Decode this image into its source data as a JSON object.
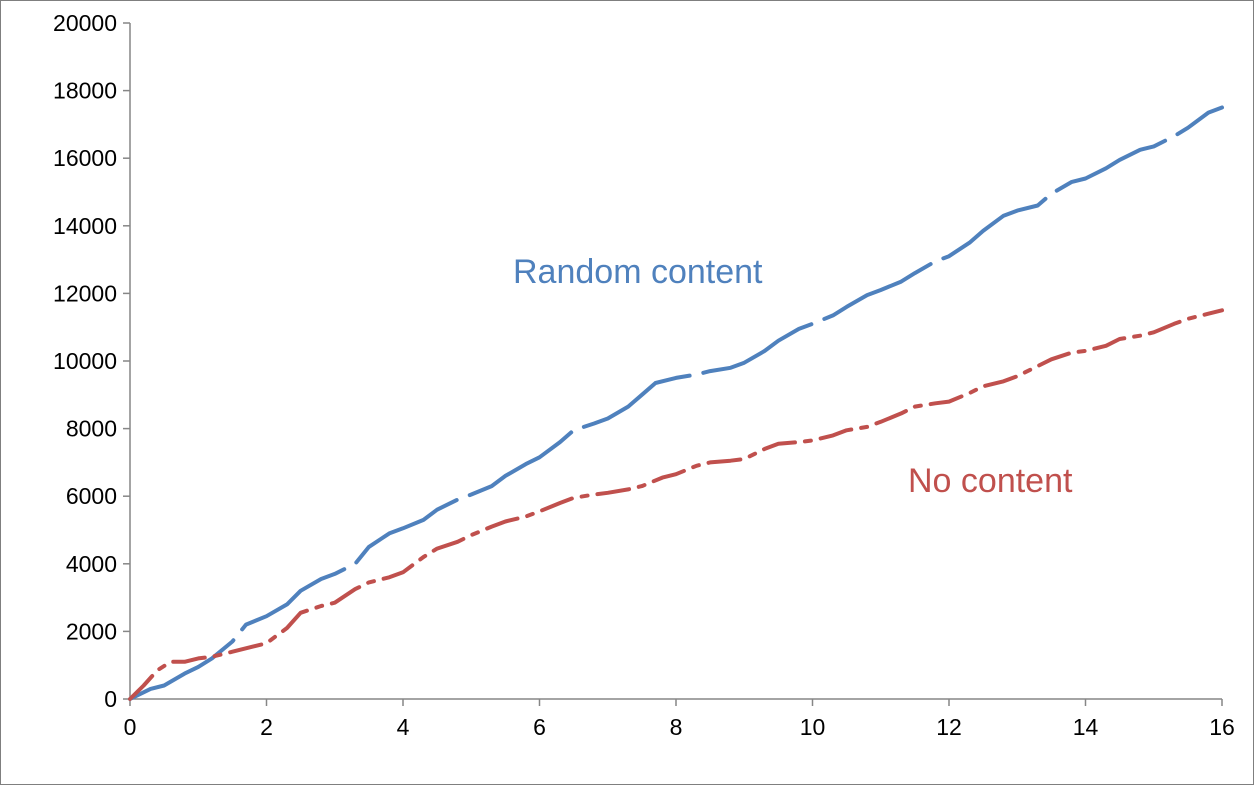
{
  "chart_data": {
    "type": "line",
    "title": "",
    "xlabel": "",
    "ylabel": "",
    "xlim": [
      0,
      16
    ],
    "ylim": [
      0,
      20000
    ],
    "x_ticks": [
      "0",
      "2",
      "4",
      "6",
      "8",
      "10",
      "12",
      "14",
      "16"
    ],
    "y_ticks": [
      "0",
      "2000",
      "4000",
      "6000",
      "8000",
      "10000",
      "12000",
      "14000",
      "16000",
      "18000",
      "20000"
    ],
    "grid": false,
    "legend": "none",
    "annotations": [
      {
        "text": "Random content",
        "series": "Random content"
      },
      {
        "text": "No content",
        "series": "No content"
      }
    ],
    "series": [
      {
        "name": "Random content",
        "color": "#4f81bd",
        "style": "dashed",
        "points": [
          [
            0,
            0
          ],
          [
            0.3,
            300
          ],
          [
            0.5,
            400
          ],
          [
            0.8,
            750
          ],
          [
            1.0,
            950
          ],
          [
            1.2,
            1200
          ],
          [
            1.5,
            1700
          ],
          [
            1.7,
            2200
          ],
          [
            2.0,
            2450
          ],
          [
            2.3,
            2800
          ],
          [
            2.5,
            3200
          ],
          [
            2.8,
            3550
          ],
          [
            3.0,
            3700
          ],
          [
            3.3,
            4000
          ],
          [
            3.5,
            4500
          ],
          [
            3.8,
            4900
          ],
          [
            4.0,
            5050
          ],
          [
            4.3,
            5300
          ],
          [
            4.5,
            5600
          ],
          [
            4.8,
            5900
          ],
          [
            5.0,
            6050
          ],
          [
            5.3,
            6300
          ],
          [
            5.5,
            6600
          ],
          [
            5.8,
            6950
          ],
          [
            6.0,
            7150
          ],
          [
            6.3,
            7600
          ],
          [
            6.5,
            7950
          ],
          [
            6.8,
            8150
          ],
          [
            7.0,
            8300
          ],
          [
            7.3,
            8650
          ],
          [
            7.5,
            9000
          ],
          [
            7.7,
            9350
          ],
          [
            8.0,
            9500
          ],
          [
            8.3,
            9600
          ],
          [
            8.5,
            9700
          ],
          [
            8.8,
            9800
          ],
          [
            9.0,
            9950
          ],
          [
            9.3,
            10300
          ],
          [
            9.5,
            10600
          ],
          [
            9.8,
            10950
          ],
          [
            10.0,
            11100
          ],
          [
            10.3,
            11350
          ],
          [
            10.5,
            11600
          ],
          [
            10.8,
            11950
          ],
          [
            11.0,
            12100
          ],
          [
            11.3,
            12350
          ],
          [
            11.5,
            12600
          ],
          [
            11.8,
            12950
          ],
          [
            12.0,
            13100
          ],
          [
            12.3,
            13500
          ],
          [
            12.5,
            13850
          ],
          [
            12.8,
            14300
          ],
          [
            13.0,
            14450
          ],
          [
            13.3,
            14600
          ],
          [
            13.5,
            14950
          ],
          [
            13.8,
            15300
          ],
          [
            14.0,
            15400
          ],
          [
            14.3,
            15700
          ],
          [
            14.5,
            15950
          ],
          [
            14.8,
            16250
          ],
          [
            15.0,
            16350
          ],
          [
            15.3,
            16650
          ],
          [
            15.5,
            16900
          ],
          [
            15.8,
            17350
          ],
          [
            16.0,
            17500
          ]
        ]
      },
      {
        "name": "No content",
        "color": "#c0504d",
        "style": "dash-dot",
        "points": [
          [
            0,
            0
          ],
          [
            0.2,
            400
          ],
          [
            0.4,
            850
          ],
          [
            0.6,
            1100
          ],
          [
            0.8,
            1100
          ],
          [
            1.0,
            1200
          ],
          [
            1.2,
            1250
          ],
          [
            1.5,
            1400
          ],
          [
            1.8,
            1550
          ],
          [
            2.0,
            1650
          ],
          [
            2.3,
            2100
          ],
          [
            2.5,
            2550
          ],
          [
            2.8,
            2750
          ],
          [
            3.0,
            2850
          ],
          [
            3.3,
            3250
          ],
          [
            3.5,
            3450
          ],
          [
            3.8,
            3600
          ],
          [
            4.0,
            3750
          ],
          [
            4.3,
            4200
          ],
          [
            4.5,
            4450
          ],
          [
            4.8,
            4650
          ],
          [
            5.0,
            4850
          ],
          [
            5.3,
            5100
          ],
          [
            5.5,
            5250
          ],
          [
            5.8,
            5400
          ],
          [
            6.0,
            5550
          ],
          [
            6.3,
            5800
          ],
          [
            6.5,
            5950
          ],
          [
            6.8,
            6050
          ],
          [
            7.0,
            6100
          ],
          [
            7.3,
            6200
          ],
          [
            7.5,
            6300
          ],
          [
            7.8,
            6550
          ],
          [
            8.0,
            6650
          ],
          [
            8.3,
            6900
          ],
          [
            8.5,
            7000
          ],
          [
            8.8,
            7050
          ],
          [
            9.0,
            7100
          ],
          [
            9.3,
            7400
          ],
          [
            9.5,
            7550
          ],
          [
            9.8,
            7600
          ],
          [
            10.0,
            7650
          ],
          [
            10.3,
            7800
          ],
          [
            10.5,
            7950
          ],
          [
            10.8,
            8050
          ],
          [
            11.0,
            8200
          ],
          [
            11.3,
            8450
          ],
          [
            11.5,
            8650
          ],
          [
            11.8,
            8750
          ],
          [
            12.0,
            8800
          ],
          [
            12.3,
            9050
          ],
          [
            12.5,
            9250
          ],
          [
            12.8,
            9400
          ],
          [
            13.0,
            9550
          ],
          [
            13.3,
            9850
          ],
          [
            13.5,
            10050
          ],
          [
            13.8,
            10250
          ],
          [
            14.0,
            10300
          ],
          [
            14.3,
            10450
          ],
          [
            14.5,
            10650
          ],
          [
            14.8,
            10750
          ],
          [
            15.0,
            10850
          ],
          [
            15.3,
            11100
          ],
          [
            15.5,
            11250
          ],
          [
            15.8,
            11400
          ],
          [
            16.0,
            11500
          ]
        ]
      }
    ]
  }
}
